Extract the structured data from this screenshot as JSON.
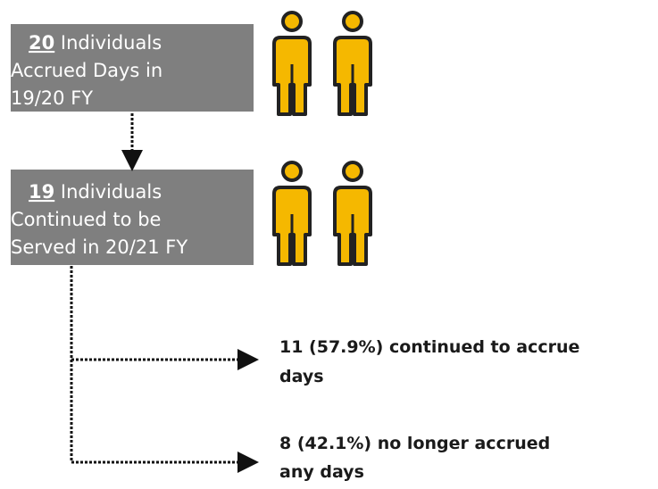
{
  "boxes": [
    {
      "count": "20",
      "lines": [
        "Individuals",
        "Accrued Days in",
        "19/20 FY"
      ]
    },
    {
      "count": "19",
      "lines": [
        "Individuals",
        "Continued to be",
        "Served in 20/21 FY"
      ]
    }
  ],
  "outcomes": [
    {
      "lines": [
        "11 (57.9%) continued to accrue",
        "days"
      ]
    },
    {
      "lines": [
        "8 (42.1%) no longer accrued",
        "any days"
      ]
    }
  ]
}
